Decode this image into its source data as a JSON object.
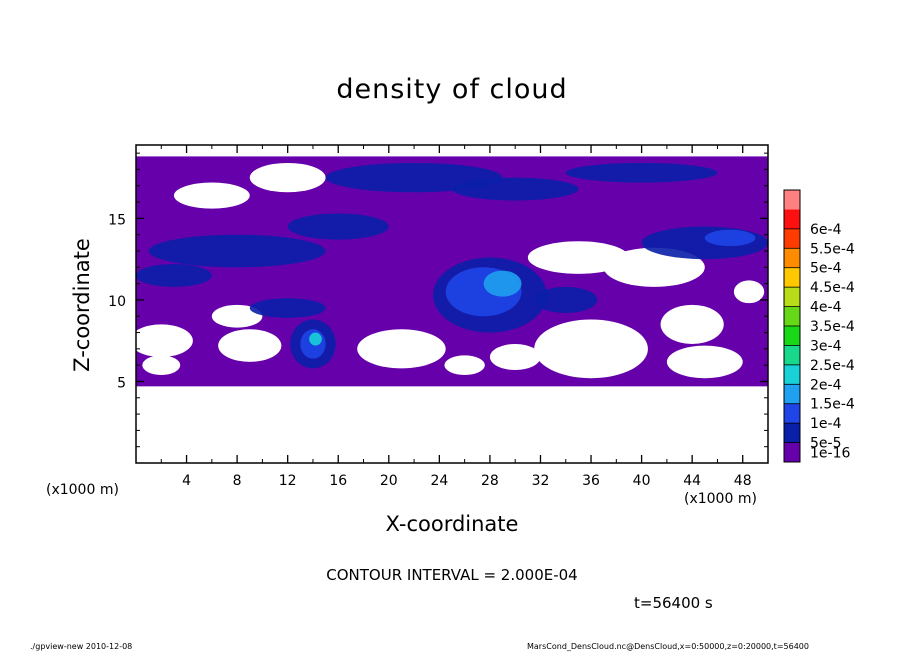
{
  "chart_data": {
    "type": "heatmap",
    "title": "density of cloud",
    "xlabel": "X-coordinate",
    "ylabel": "Z-coordinate",
    "x_unit_label": "(x1000 m)",
    "xlim": [
      0,
      50
    ],
    "ylim": [
      0,
      19.5
    ],
    "x_ticks": [
      4,
      8,
      12,
      16,
      20,
      24,
      28,
      32,
      36,
      40,
      44,
      48
    ],
    "y_ticks": [
      5,
      10,
      15
    ],
    "grid": false,
    "colorbar": {
      "placement": "right",
      "levels": [
        "1e-16",
        "5e-5",
        "1e-4",
        "1.5e-4",
        "2e-4",
        "2.5e-4",
        "3e-4",
        "3.5e-4",
        "4e-4",
        "4.5e-4",
        "5e-4",
        "5.5e-4",
        "6e-4"
      ],
      "colors": [
        "#6600aa",
        "#0a1fa8",
        "#1f45e6",
        "#1fa0f0",
        "#18d2d8",
        "#18d88c",
        "#18d818",
        "#66d818",
        "#b8dc18",
        "#ffc800",
        "#ff8c00",
        "#ff3c00",
        "#ff1010",
        "#ff8080"
      ]
    },
    "field_summary": {
      "domain_x": [
        0,
        50
      ],
      "domain_z": [
        4.7,
        18.8
      ],
      "background_level": "1e-16",
      "features": [
        {
          "label": "",
          "x": [
            14,
            28
          ],
          "z": [
            12,
            19
          ],
          "max_level": "1e-4"
        },
        {
          "label": "",
          "x": [
            0,
            18
          ],
          "z": [
            10,
            15
          ],
          "max_level": "1e-4"
        },
        {
          "label": "",
          "x": [
            24,
            34
          ],
          "z": [
            8,
            13
          ],
          "max_level": "1.5e-4"
        },
        {
          "label": "",
          "x": [
            12,
            16
          ],
          "z": [
            5,
            9
          ],
          "max_level": "2e-4"
        },
        {
          "label": "",
          "x": [
            40,
            50
          ],
          "z": [
            12,
            15
          ],
          "max_level": "1e-4"
        }
      ]
    }
  },
  "annotations": {
    "contour_interval": "CONTOUR INTERVAL = 2.000E-04",
    "time": "t=56400 s",
    "footer_left": "./gpview-new   2010-12-08",
    "footer_right": "MarsCond_DensCloud.nc@DensCloud,x=0:50000,z=0:20000,t=56400"
  }
}
